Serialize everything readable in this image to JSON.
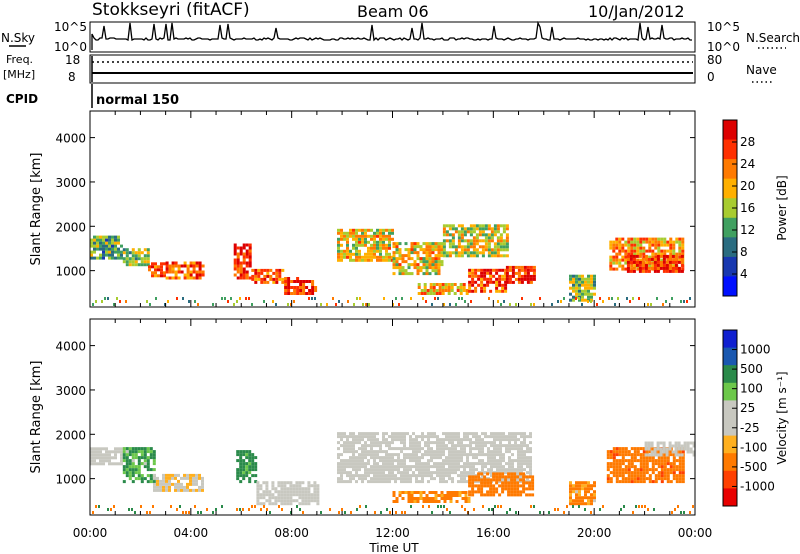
{
  "header": {
    "station": "Stokkseyri (fitACF)",
    "beam": "Beam 06",
    "date": "10/Jan/2012"
  },
  "strips": {
    "nsky_label": "N.Sky",
    "nsky_ticks": [
      "10^5",
      "10^0"
    ],
    "nsearch_label": "N.Search",
    "nsearch_ticks": [
      "10^5",
      "10^0"
    ],
    "freq_label": "Freq.",
    "freq_unit": "[MHz]",
    "freq_ticks": [
      "18",
      "8"
    ],
    "nave_label": "Nave",
    "nave_ticks": [
      "80",
      "0"
    ],
    "cpid_label": "CPID",
    "cpid_value": "normal 150"
  },
  "axes": {
    "ylabel": "Slant Range [km]",
    "xlabel": "Time UT",
    "x_ticks": [
      "00:00",
      "04:00",
      "08:00",
      "12:00",
      "16:00",
      "20:00",
      "00:00"
    ],
    "y_ticks": [
      "4000",
      "3000",
      "2000",
      "1000"
    ]
  },
  "colorbars": {
    "power": {
      "label": "Power [dB]",
      "ticks": [
        "28",
        "24",
        "20",
        "16",
        "12",
        "8",
        "4"
      ],
      "colors": [
        "#dd0000",
        "#ff3000",
        "#ff7a00",
        "#ffb000",
        "#a8cc30",
        "#40a060",
        "#2a6c80",
        "#1838b0",
        "#0010ff"
      ]
    },
    "velocity": {
      "label": "Velocity [m s⁻¹]",
      "ticks": [
        "1000",
        "500",
        "100",
        "25",
        "-25",
        "-100",
        "-500",
        "-1000"
      ],
      "colors": [
        "#1020d0",
        "#1a58b0",
        "#2a8a4a",
        "#6cc84a",
        "#c8c8c0",
        "#c8c8c0",
        "#ffb020",
        "#ff7a00",
        "#ff4000",
        "#e80000"
      ]
    }
  },
  "chart_data": [
    {
      "type": "heatmap",
      "title": "Power [dB]",
      "xlabel": "Time UT",
      "ylabel": "Slant Range [km]",
      "xlim": [
        0,
        24
      ],
      "ylim": [
        180,
        4600
      ],
      "scale": "Power [dB]",
      "scale_range": [
        0,
        30
      ],
      "regions": [
        {
          "t0": 0.0,
          "t1": 1.3,
          "r0": 1250,
          "r1": 1750,
          "p": 12
        },
        {
          "t0": 1.3,
          "t1": 2.3,
          "r0": 1100,
          "r1": 1500,
          "p": 14
        },
        {
          "t0": 2.3,
          "t1": 3.0,
          "r0": 850,
          "r1": 1150,
          "p": 24
        },
        {
          "t0": 3.0,
          "t1": 4.5,
          "r0": 800,
          "r1": 1150,
          "p": 23
        },
        {
          "t0": 5.7,
          "t1": 6.4,
          "r0": 800,
          "r1": 1600,
          "p": 26
        },
        {
          "t0": 6.4,
          "t1": 7.7,
          "r0": 700,
          "r1": 1000,
          "p": 22
        },
        {
          "t0": 7.7,
          "t1": 9.0,
          "r0": 450,
          "r1": 800,
          "p": 26
        },
        {
          "t0": 9.8,
          "t1": 12.0,
          "r0": 1200,
          "r1": 1900,
          "p": 18
        },
        {
          "t0": 12.0,
          "t1": 14.0,
          "r0": 900,
          "r1": 1600,
          "p": 18
        },
        {
          "t0": 14.0,
          "t1": 16.5,
          "r0": 1300,
          "r1": 2000,
          "p": 16
        },
        {
          "t0": 13.0,
          "t1": 15.0,
          "r0": 450,
          "r1": 700,
          "p": 20
        },
        {
          "t0": 15.0,
          "t1": 16.5,
          "r0": 500,
          "r1": 1000,
          "p": 24
        },
        {
          "t0": 16.5,
          "t1": 17.6,
          "r0": 700,
          "r1": 1100,
          "p": 27
        },
        {
          "t0": 19.0,
          "t1": 20.0,
          "r0": 300,
          "r1": 850,
          "p": 14
        },
        {
          "t0": 20.6,
          "t1": 23.5,
          "r0": 1000,
          "r1": 1700,
          "p": 20
        },
        {
          "t0": 21.3,
          "t1": 23.5,
          "r0": 950,
          "r1": 1300,
          "p": 27
        }
      ]
    },
    {
      "type": "heatmap",
      "title": "Velocity [m s-1]",
      "xlabel": "Time UT",
      "ylabel": "Slant Range [km]",
      "xlim": [
        0,
        24
      ],
      "ylim": [
        180,
        4600
      ],
      "scale": "Velocity [m s-1]",
      "scale_range": [
        -1000,
        1000
      ],
      "regions": [
        {
          "t0": 0.0,
          "t1": 1.3,
          "r0": 1300,
          "r1": 1700,
          "v": 0
        },
        {
          "t0": 1.3,
          "t1": 2.5,
          "r0": 900,
          "r1": 1700,
          "v": 150
        },
        {
          "t0": 2.5,
          "t1": 4.5,
          "r0": 700,
          "r1": 1100,
          "v": -20
        },
        {
          "t0": 5.8,
          "t1": 6.6,
          "r0": 900,
          "r1": 1600,
          "v": 200
        },
        {
          "t0": 6.6,
          "t1": 9.0,
          "r0": 400,
          "r1": 900,
          "v": 0
        },
        {
          "t0": 9.8,
          "t1": 17.5,
          "r0": 900,
          "r1": 2000,
          "v": 0
        },
        {
          "t0": 12.0,
          "t1": 15.0,
          "r0": 450,
          "r1": 700,
          "v": -150
        },
        {
          "t0": 15.0,
          "t1": 17.6,
          "r0": 600,
          "r1": 1100,
          "v": -250
        },
        {
          "t0": 19.0,
          "t1": 20.0,
          "r0": 400,
          "r1": 900,
          "v": -150
        },
        {
          "t0": 20.5,
          "t1": 23.5,
          "r0": 900,
          "r1": 1700,
          "v": -400
        },
        {
          "t0": 22.0,
          "t1": 24.0,
          "r0": 1500,
          "r1": 1800,
          "v": 0
        }
      ]
    }
  ]
}
